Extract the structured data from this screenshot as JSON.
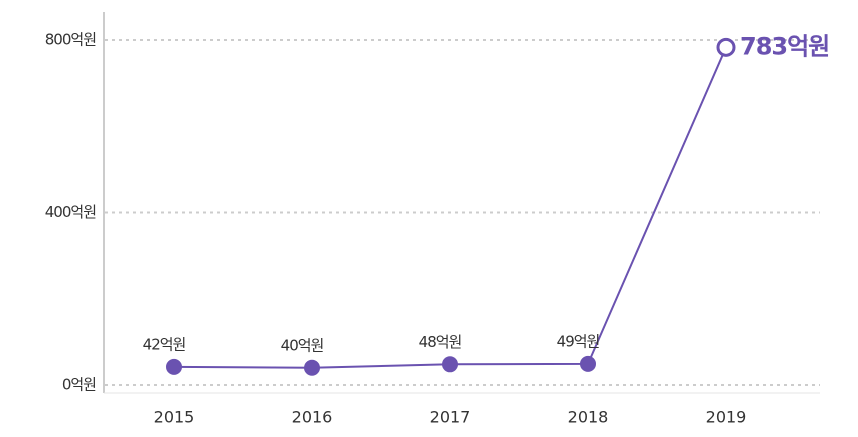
{
  "chart_data": {
    "type": "line",
    "categories": [
      "2015",
      "2016",
      "2017",
      "2018",
      "2019"
    ],
    "values": [
      42,
      40,
      48,
      49,
      783
    ],
    "value_labels": [
      "42억원",
      "40억원",
      "48억원",
      "49억원",
      "783억원"
    ],
    "color": "#6a52b0",
    "ylim": [
      0,
      800
    ],
    "yticks": [
      {
        "value": 0,
        "label": "0억원"
      },
      {
        "value": 400,
        "label": "400억원"
      },
      {
        "value": 800,
        "label": "800억원"
      }
    ],
    "grid": true
  }
}
